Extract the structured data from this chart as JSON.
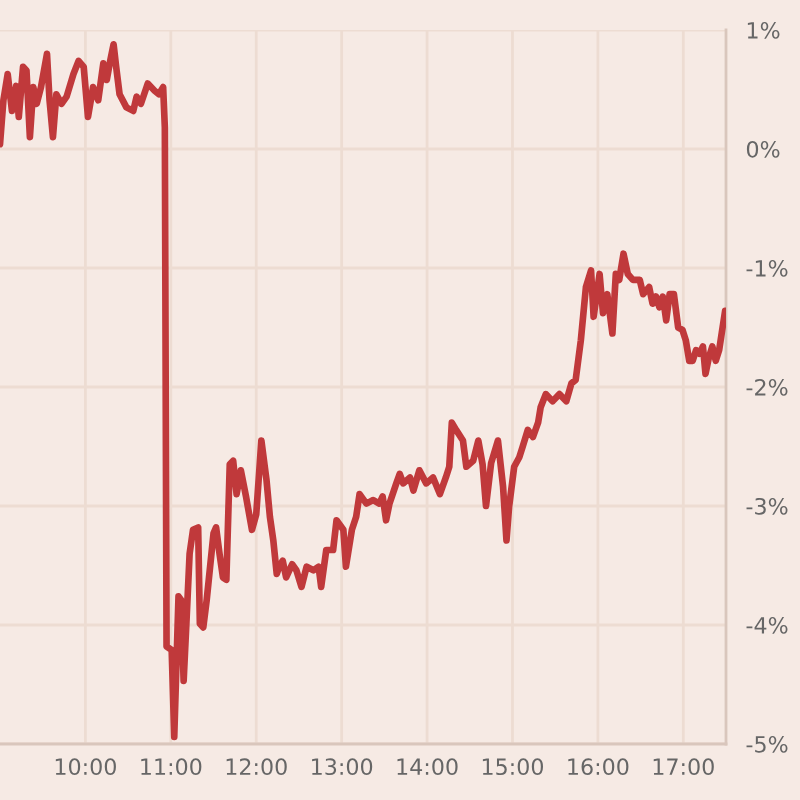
{
  "chart_data": {
    "type": "line",
    "series": [
      {
        "color": "#c0393b",
        "x": [
          9.0,
          9.04,
          9.09,
          9.14,
          9.19,
          9.22,
          9.27,
          9.31,
          9.35,
          9.39,
          9.43,
          9.48,
          9.55,
          9.58,
          9.62,
          9.66,
          9.72,
          9.78,
          9.86,
          9.92,
          9.98,
          10.03,
          10.09,
          10.15,
          10.21,
          10.25,
          10.29,
          10.33,
          10.36,
          10.4,
          10.48,
          10.56,
          10.6,
          10.65,
          10.73,
          10.81,
          10.86,
          10.91,
          10.93,
          10.95,
          11.01,
          11.04,
          11.09,
          11.12,
          11.15,
          11.18,
          11.22,
          11.26,
          11.32,
          11.34,
          11.38,
          11.42,
          11.46,
          11.5,
          11.53,
          11.57,
          11.61,
          11.65,
          11.69,
          11.73,
          11.77,
          11.82,
          11.88,
          11.95,
          12.0,
          12.06,
          12.12,
          12.16,
          12.2,
          12.24,
          12.27,
          12.31,
          12.35,
          12.42,
          12.47,
          12.53,
          12.59,
          12.67,
          12.73,
          12.76,
          12.82,
          12.9,
          12.94,
          13.02,
          13.05,
          13.12,
          13.17,
          13.21,
          13.29,
          13.37,
          13.44,
          13.48,
          13.52,
          13.56,
          13.64,
          13.68,
          13.72,
          13.8,
          13.84,
          13.91,
          13.99,
          14.07,
          14.15,
          14.22,
          14.26,
          14.29,
          14.34,
          14.42,
          14.46,
          14.54,
          14.6,
          14.65,
          14.69,
          14.75,
          14.83,
          14.89,
          14.93,
          14.96,
          15.02,
          15.08,
          15.12,
          15.18,
          15.24,
          15.3,
          15.33,
          15.39,
          15.47,
          15.55,
          15.63,
          15.69,
          15.74,
          15.8,
          15.86,
          15.92,
          15.95,
          16.02,
          16.06,
          16.11,
          16.17,
          16.21,
          16.25,
          16.3,
          16.35,
          16.41,
          16.49,
          16.53,
          16.6,
          16.64,
          16.68,
          16.72,
          16.76,
          16.8,
          16.84,
          16.89,
          16.94,
          16.99,
          17.03,
          17.07,
          17.11,
          17.15,
          17.19,
          17.23,
          17.26,
          17.3,
          17.34,
          17.38,
          17.42,
          17.46,
          17.49
        ],
        "values": [
          0.04,
          0.41,
          0.63,
          0.32,
          0.53,
          0.27,
          0.69,
          0.66,
          0.1,
          0.52,
          0.38,
          0.52,
          0.8,
          0.41,
          0.1,
          0.46,
          0.38,
          0.44,
          0.63,
          0.74,
          0.69,
          0.27,
          0.52,
          0.41,
          0.72,
          0.58,
          0.74,
          0.88,
          0.69,
          0.46,
          0.35,
          0.32,
          0.44,
          0.38,
          0.55,
          0.49,
          0.46,
          0.52,
          0.18,
          -4.18,
          -4.21,
          -4.94,
          -3.76,
          -3.79,
          -4.47,
          -4.02,
          -3.4,
          -3.2,
          -3.18,
          -3.99,
          -4.02,
          -3.79,
          -3.51,
          -3.23,
          -3.18,
          -3.4,
          -3.6,
          -3.62,
          -2.65,
          -2.62,
          -2.9,
          -2.7,
          -2.92,
          -3.2,
          -3.07,
          -2.45,
          -2.78,
          -3.09,
          -3.29,
          -3.57,
          -3.51,
          -3.46,
          -3.6,
          -3.49,
          -3.54,
          -3.68,
          -3.51,
          -3.54,
          -3.51,
          -3.68,
          -3.37,
          -3.37,
          -3.12,
          -3.2,
          -3.51,
          -3.2,
          -3.09,
          -2.9,
          -2.98,
          -2.95,
          -2.98,
          -2.92,
          -3.12,
          -2.98,
          -2.81,
          -2.73,
          -2.81,
          -2.76,
          -2.87,
          -2.7,
          -2.81,
          -2.76,
          -2.9,
          -2.76,
          -2.67,
          -2.3,
          -2.36,
          -2.45,
          -2.67,
          -2.62,
          -2.45,
          -2.65,
          -3.0,
          -2.64,
          -2.45,
          -2.84,
          -3.29,
          -3.01,
          -2.67,
          -2.59,
          -2.5,
          -2.36,
          -2.42,
          -2.3,
          -2.17,
          -2.06,
          -2.12,
          -2.06,
          -2.12,
          -1.97,
          -1.94,
          -1.61,
          -1.16,
          -1.02,
          -1.41,
          -1.05,
          -1.38,
          -1.22,
          -1.55,
          -1.05,
          -1.1,
          -0.88,
          -1.05,
          -1.1,
          -1.1,
          -1.22,
          -1.16,
          -1.3,
          -1.24,
          -1.33,
          -1.24,
          -1.44,
          -1.22,
          -1.22,
          -1.5,
          -1.52,
          -1.61,
          -1.78,
          -1.78,
          -1.69,
          -1.72,
          -1.66,
          -1.89,
          -1.75,
          -1.66,
          -1.78,
          -1.69,
          -1.5,
          -1.36
        ]
      }
    ],
    "xlim": [
      9,
      17.5
    ],
    "xticks": [
      {
        "value": 10,
        "label": "10:00"
      },
      {
        "value": 11,
        "label": "11:00"
      },
      {
        "value": 12,
        "label": "12:00"
      },
      {
        "value": 13,
        "label": "13:00"
      },
      {
        "value": 14,
        "label": "14:00"
      },
      {
        "value": 15,
        "label": "15:00"
      },
      {
        "value": 16,
        "label": "16:00"
      },
      {
        "value": 17,
        "label": "17:00"
      }
    ],
    "ylim": [
      -5,
      1
    ],
    "yticks": [
      {
        "value": 1,
        "label": "1%"
      },
      {
        "value": 0,
        "label": "0%"
      },
      {
        "value": -1,
        "label": "-1%"
      },
      {
        "value": -2,
        "label": "-2%"
      },
      {
        "value": -3,
        "label": "-3%"
      },
      {
        "value": -4,
        "label": "-4%"
      },
      {
        "value": -5,
        "label": "-5%"
      }
    ],
    "grid": true,
    "marker": "none",
    "line_style": "solid"
  }
}
